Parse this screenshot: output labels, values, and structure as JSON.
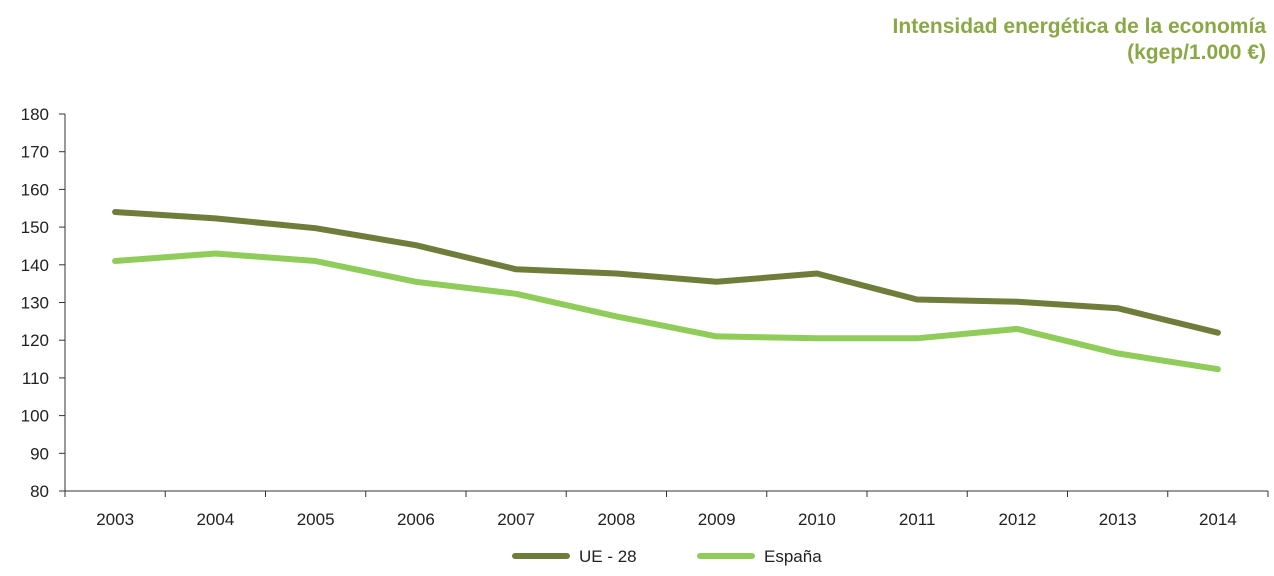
{
  "chart_data": {
    "type": "line",
    "title_line1": "Intensidad energética de la economía",
    "title_line2": "(kgep/1.000 €)",
    "xlabel": "",
    "ylabel": "",
    "categories": [
      "2003",
      "2004",
      "2005",
      "2006",
      "2007",
      "2008",
      "2009",
      "2010",
      "2011",
      "2012",
      "2013",
      "2014"
    ],
    "ylim": [
      80,
      180
    ],
    "yticks": [
      80,
      90,
      100,
      110,
      120,
      130,
      140,
      150,
      160,
      170,
      180
    ],
    "grid": false,
    "legend_position": "bottom-center",
    "series": [
      {
        "name": "UE - 28",
        "color": "#6f7d3a",
        "values": [
          154,
          152.3,
          149.7,
          145.2,
          138.8,
          137.7,
          135.5,
          137.7,
          130.8,
          130.2,
          128.5,
          122
        ]
      },
      {
        "name": "España",
        "color": "#8fcc5a",
        "values": [
          141,
          143,
          141,
          135.5,
          132.3,
          126.3,
          121,
          120.5,
          120.5,
          123,
          116.5,
          112.3
        ]
      }
    ]
  }
}
